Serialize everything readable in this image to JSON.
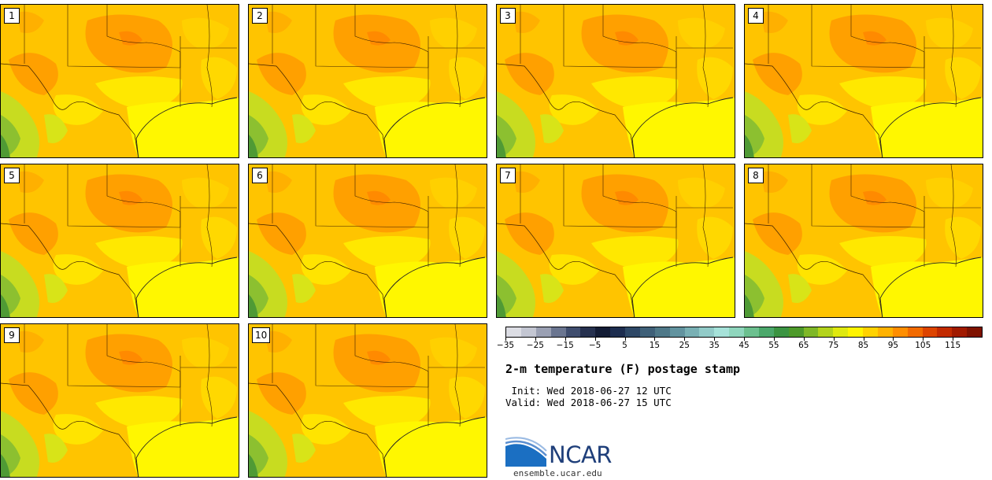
{
  "panels": [
    {
      "label": "1"
    },
    {
      "label": "2"
    },
    {
      "label": "3"
    },
    {
      "label": "4"
    },
    {
      "label": "5"
    },
    {
      "label": "6"
    },
    {
      "label": "7"
    },
    {
      "label": "8"
    },
    {
      "label": "9"
    },
    {
      "label": "10"
    }
  ],
  "colorbar": {
    "colors": [
      "#dcdde4",
      "#c3c6d2",
      "#9aa0b3",
      "#6a7590",
      "#3f4d6e",
      "#26314f",
      "#131c35",
      "#1d2d4f",
      "#2e4866",
      "#3f6078",
      "#4f7888",
      "#62939f",
      "#79b0b4",
      "#92cbc8",
      "#a6e2d9",
      "#8fd6bd",
      "#6cc08f",
      "#4ba86b",
      "#3b9442",
      "#4d9a2a",
      "#7fb827",
      "#b3d31c",
      "#dfe90f",
      "#fff400",
      "#ffd200",
      "#ffb200",
      "#ff8e00",
      "#f26a00",
      "#dd4400",
      "#c22a00",
      "#a11a00",
      "#7f1200"
    ],
    "ticks": [
      "−35",
      "−25",
      "−15",
      "−5",
      "5",
      "15",
      "25",
      "35",
      "45",
      "55",
      "65",
      "75",
      "85",
      "95",
      "105",
      "115"
    ]
  },
  "title": "2-m temperature (F) postage stamp",
  "init_line": " Init: Wed 2018-06-27 12 UTC",
  "valid_line": "Valid: Wed 2018-06-27 15 UTC",
  "logo": {
    "text": "NCAR",
    "url": "ensemble.ucar.edu",
    "primary_color": "#1f3f7a",
    "accent_color": "#5b8fd0"
  }
}
